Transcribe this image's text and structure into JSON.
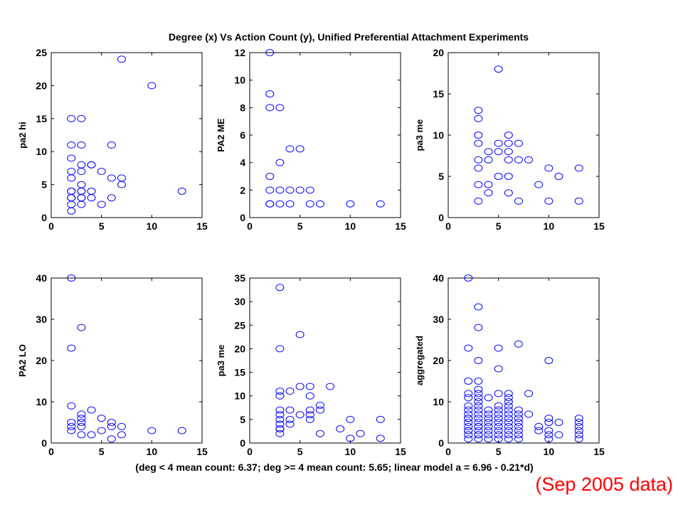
{
  "figure": {
    "title": "Degree (x) Vs Action Count (y), Unified Preferential Attachment Experiments",
    "caption": "(deg < 4 mean count: 6.37; deg >= 4 mean count: 5.65; linear model a = 6.96 - 0.21*d)",
    "note": "(Sep 2005 data)",
    "marker_color": "#0000ff",
    "note_color": "#ff0000"
  },
  "chart_data": [
    {
      "type": "scatter",
      "ylabel": "pa2 hi",
      "xlim": [
        0,
        15
      ],
      "ylim": [
        0,
        25
      ],
      "xticks": [
        0,
        5,
        10,
        15
      ],
      "yticks": [
        0,
        5,
        10,
        15,
        20,
        25
      ],
      "x": [
        2,
        2,
        2,
        2,
        2,
        2,
        2,
        2,
        2,
        2,
        2,
        3,
        3,
        3,
        3,
        3,
        3,
        3,
        3,
        3,
        3,
        4,
        4,
        4,
        4,
        5,
        5,
        6,
        6,
        6,
        7,
        7,
        7,
        10,
        13
      ],
      "y": [
        1,
        2,
        3,
        4,
        6,
        7,
        9,
        11,
        15,
        3,
        4,
        2,
        3,
        4,
        5,
        7,
        8,
        11,
        15,
        3,
        4,
        3,
        4,
        8,
        8,
        2,
        7,
        3,
        6,
        11,
        5,
        6,
        24,
        20,
        4
      ]
    },
    {
      "type": "scatter",
      "ylabel": "PA2 ME",
      "xlim": [
        0,
        15
      ],
      "ylim": [
        0,
        12
      ],
      "xticks": [
        0,
        5,
        10,
        15
      ],
      "yticks": [
        0,
        2,
        4,
        6,
        8,
        10,
        12
      ],
      "x": [
        2,
        2,
        2,
        2,
        2,
        2,
        2,
        3,
        3,
        3,
        3,
        4,
        4,
        4,
        5,
        5,
        6,
        6,
        7,
        10,
        13
      ],
      "y": [
        1,
        2,
        3,
        8,
        9,
        12,
        1,
        1,
        2,
        4,
        8,
        1,
        2,
        5,
        2,
        5,
        1,
        2,
        1,
        1,
        1
      ]
    },
    {
      "type": "scatter",
      "ylabel": "pa3 me",
      "xlim": [
        0,
        15
      ],
      "ylim": [
        0,
        20
      ],
      "xticks": [
        0,
        5,
        10,
        15
      ],
      "yticks": [
        0,
        5,
        10,
        15,
        20
      ],
      "x": [
        3,
        3,
        3,
        3,
        3,
        3,
        3,
        3,
        4,
        4,
        4,
        4,
        5,
        5,
        5,
        5,
        6,
        6,
        6,
        6,
        6,
        6,
        7,
        7,
        7,
        8,
        9,
        10,
        10,
        11,
        13,
        13
      ],
      "y": [
        2,
        4,
        6,
        7,
        9,
        10,
        12,
        13,
        3,
        4,
        7,
        8,
        5,
        8,
        9,
        18,
        3,
        5,
        7,
        8,
        9,
        10,
        2,
        7,
        9,
        7,
        4,
        2,
        6,
        5,
        2,
        6
      ]
    },
    {
      "type": "scatter",
      "ylabel": "PA2 LO",
      "xlim": [
        0,
        15
      ],
      "ylim": [
        0,
        40
      ],
      "xticks": [
        0,
        5,
        10,
        15
      ],
      "yticks": [
        0,
        10,
        20,
        30,
        40
      ],
      "x": [
        2,
        2,
        2,
        2,
        2,
        2,
        3,
        3,
        3,
        3,
        3,
        3,
        4,
        4,
        5,
        5,
        6,
        6,
        6,
        7,
        7,
        10,
        13
      ],
      "y": [
        3,
        4,
        5,
        9,
        23,
        40,
        2,
        4,
        5,
        6,
        7,
        28,
        2,
        8,
        3,
        6,
        1,
        4,
        5,
        2,
        4,
        3,
        3
      ]
    },
    {
      "type": "scatter",
      "ylabel": "pa3 me",
      "xlim": [
        0,
        15
      ],
      "ylim": [
        0,
        35
      ],
      "xticks": [
        0,
        5,
        10,
        15
      ],
      "yticks": [
        0,
        5,
        10,
        15,
        20,
        25,
        30,
        35
      ],
      "x": [
        3,
        3,
        3,
        3,
        3,
        3,
        3,
        3,
        3,
        3,
        3,
        4,
        4,
        4,
        4,
        5,
        5,
        5,
        6,
        6,
        6,
        6,
        6,
        7,
        7,
        7,
        8,
        9,
        10,
        10,
        11,
        13,
        13
      ],
      "y": [
        2,
        3,
        4,
        5,
        6,
        7,
        10,
        11,
        20,
        33,
        3,
        4,
        5,
        7,
        11,
        6,
        12,
        23,
        5,
        6,
        7,
        10,
        12,
        2,
        7,
        8,
        12,
        3,
        1,
        5,
        2,
        1,
        5
      ]
    },
    {
      "type": "scatter",
      "ylabel": "aggregated",
      "xlim": [
        0,
        15
      ],
      "ylim": [
        0,
        40
      ],
      "xticks": [
        0,
        5,
        10,
        15
      ],
      "yticks": [
        0,
        10,
        20,
        30,
        40
      ],
      "x": [
        2,
        2,
        2,
        2,
        2,
        2,
        2,
        2,
        2,
        2,
        2,
        2,
        2,
        2,
        2,
        2,
        3,
        3,
        3,
        3,
        3,
        3,
        3,
        3,
        3,
        3,
        3,
        3,
        3,
        3,
        3,
        3,
        3,
        3,
        3,
        4,
        4,
        4,
        4,
        4,
        4,
        4,
        4,
        4,
        5,
        5,
        5,
        5,
        5,
        5,
        5,
        5,
        5,
        5,
        5,
        5,
        6,
        6,
        6,
        6,
        6,
        6,
        6,
        6,
        6,
        6,
        6,
        6,
        7,
        7,
        7,
        7,
        7,
        7,
        7,
        7,
        7,
        8,
        8,
        9,
        9,
        10,
        10,
        10,
        10,
        10,
        10,
        11,
        11,
        13,
        13,
        13,
        13,
        13,
        13
      ],
      "y": [
        1,
        2,
        3,
        4,
        5,
        6,
        7,
        8,
        9,
        11,
        12,
        15,
        23,
        40,
        3,
        6,
        1,
        2,
        3,
        4,
        5,
        6,
        7,
        8,
        9,
        10,
        11,
        12,
        13,
        15,
        20,
        28,
        33,
        2,
        4,
        1,
        2,
        3,
        4,
        5,
        6,
        7,
        8,
        11,
        1,
        2,
        3,
        4,
        5,
        6,
        7,
        8,
        9,
        12,
        18,
        23,
        1,
        2,
        3,
        4,
        5,
        6,
        7,
        8,
        9,
        10,
        11,
        12,
        1,
        2,
        3,
        4,
        5,
        6,
        7,
        8,
        24,
        7,
        12,
        3,
        4,
        1,
        2,
        3,
        5,
        6,
        20,
        2,
        5,
        1,
        2,
        3,
        4,
        5,
        6
      ]
    }
  ]
}
